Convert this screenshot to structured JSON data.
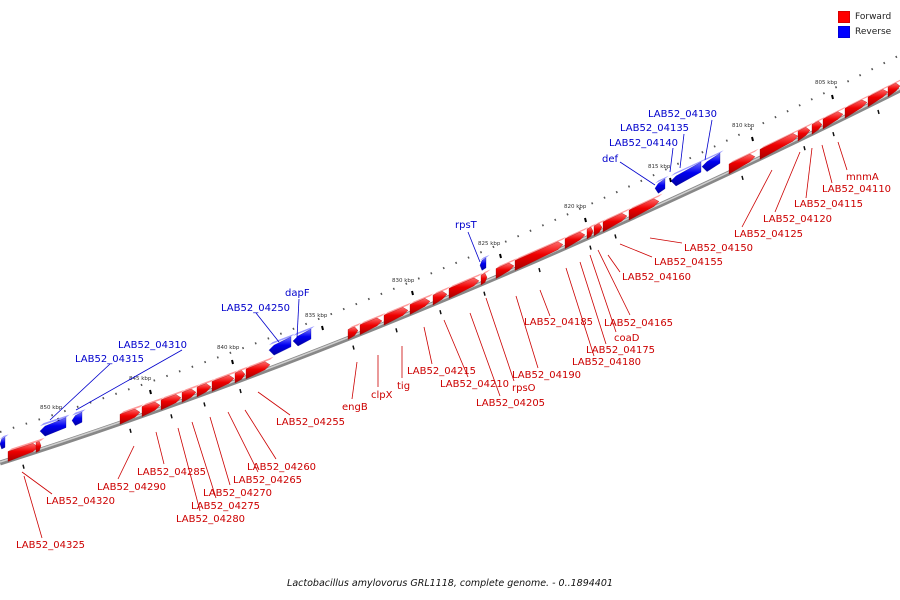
{
  "legend": {
    "forward": {
      "label": "Forward",
      "color": "#ff0000"
    },
    "reverse": {
      "label": "Reverse",
      "color": "#0000ff"
    }
  },
  "caption": "Lactobacillus amylovorus GRL1118, complete genome. - 0..1894401",
  "genome": {
    "ticks": [
      {
        "label": "805 kbp",
        "pos_kbp": 805
      },
      {
        "label": "810 kbp",
        "pos_kbp": 810
      },
      {
        "label": "815 kbp",
        "pos_kbp": 815
      },
      {
        "label": "820 kbp",
        "pos_kbp": 820
      },
      {
        "label": "825 kbp",
        "pos_kbp": 825
      },
      {
        "label": "830 kbp",
        "pos_kbp": 830
      },
      {
        "label": "835 kbp",
        "pos_kbp": 835
      },
      {
        "label": "840 kbp",
        "pos_kbp": 840
      },
      {
        "label": "845 kbp",
        "pos_kbp": 845
      },
      {
        "label": "850 kbp",
        "pos_kbp": 850
      }
    ],
    "forward_genes": [
      "mnmA",
      "LAB52_04110",
      "LAB52_04115",
      "LAB52_04120",
      "LAB52_04125",
      "LAB52_04150",
      "LAB52_04155",
      "LAB52_04160",
      "LAB52_04165",
      "coaD",
      "LAB52_04175",
      "LAB52_04180",
      "LAB52_04185",
      "LAB52_04190",
      "rpsO",
      "LAB52_04205",
      "LAB52_04210",
      "LAB52_04215",
      "tig",
      "clpX",
      "engB",
      "LAB52_04255",
      "LAB52_04260",
      "LAB52_04265",
      "LAB52_04270",
      "LAB52_04275",
      "LAB52_04280",
      "LAB52_04285",
      "LAB52_04290",
      "LAB52_04320",
      "LAB52_04325"
    ],
    "reverse_genes": [
      "LAB52_04130",
      "LAB52_04135",
      "LAB52_04140",
      "def",
      "rpsT",
      "dapF",
      "LAB52_04250",
      "LAB52_04310",
      "LAB52_04315"
    ]
  }
}
